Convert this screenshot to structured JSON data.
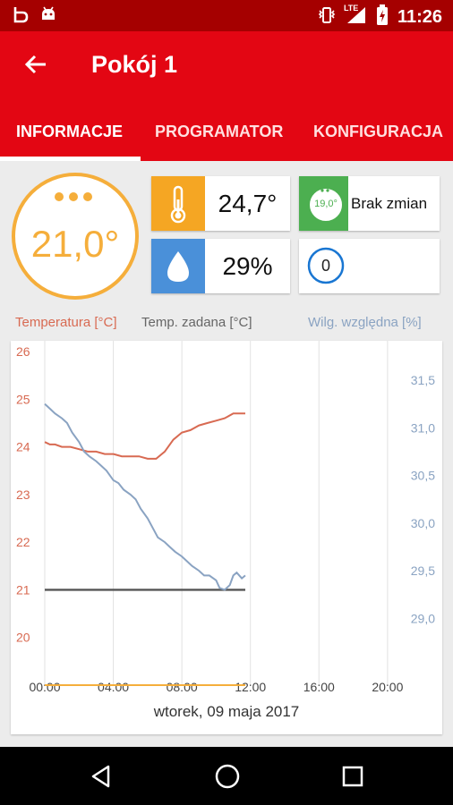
{
  "status": {
    "time": "11:26",
    "lte": "LTE"
  },
  "app": {
    "title": "Pokój 1"
  },
  "tabs": [
    {
      "label": "INFORMACJE",
      "active": true
    },
    {
      "label": "PROGRAMATOR",
      "active": false
    },
    {
      "label": "KONFIGURACJA",
      "active": false
    }
  ],
  "room": {
    "set_temperature": "21,0°",
    "current_temperature": "24,7°",
    "humidity": "29%",
    "mode_badge": "19,0°",
    "status_text": "Brak zmian",
    "counter": "0"
  },
  "legend": {
    "temperature": "Temperatura [°C]",
    "setpoint": "Temp. zadana [°C]",
    "humidity": "Wilg. względna [%]"
  },
  "colors": {
    "brand_red": "#e30613",
    "status_red": "#a50000",
    "orange": "#f5ae3b",
    "blue": "#4a90d9",
    "green": "#4caf50",
    "temp_series": "#d86a52",
    "setpoint_series": "#555555",
    "humidity_series": "#8aa3c2"
  },
  "chart_data": {
    "type": "line",
    "date_label": "wtorek, 09 maja 2017",
    "x_ticks": [
      "00:00",
      "04:00",
      "08:00",
      "12:00",
      "16:00",
      "20:00"
    ],
    "x_range_hours": [
      0,
      21
    ],
    "y_left_ticks": [
      "26",
      "25",
      "24",
      "23",
      "22",
      "21",
      "20"
    ],
    "y_left_range": [
      19,
      26
    ],
    "y_right_ticks": [
      "31,5",
      "31,0",
      "30,5",
      "30,0",
      "29,5",
      "29,0"
    ],
    "y_right_range": [
      28.3,
      31.8
    ],
    "series": [
      {
        "name": "Temperatura [°C]",
        "axis": "left",
        "x": [
          0,
          0.3,
          0.6,
          1,
          1.5,
          2,
          2.5,
          3,
          3.5,
          4,
          4.5,
          5,
          5.5,
          6,
          6.5,
          7,
          7.5,
          8,
          8.5,
          9,
          9.5,
          10,
          10.5,
          11,
          11.5,
          11.7
        ],
        "y": [
          24.1,
          24.05,
          24.05,
          24.0,
          24.0,
          23.95,
          23.9,
          23.9,
          23.85,
          23.85,
          23.8,
          23.8,
          23.8,
          23.75,
          23.75,
          23.9,
          24.15,
          24.3,
          24.35,
          24.45,
          24.5,
          24.55,
          24.6,
          24.7,
          24.7,
          24.7
        ]
      },
      {
        "name": "Temp. zadana [°C]",
        "axis": "left",
        "x": [
          0,
          11.7
        ],
        "y": [
          21.0,
          21.0
        ]
      },
      {
        "name": "Wilg. względna [%]",
        "axis": "right",
        "x": [
          0,
          0.3,
          0.6,
          1,
          1.3,
          1.6,
          2,
          2.3,
          2.6,
          3,
          3.3,
          3.6,
          4,
          4.3,
          4.6,
          5,
          5.3,
          5.6,
          6,
          6.3,
          6.6,
          7,
          7.3,
          7.6,
          8,
          8.3,
          8.6,
          9,
          9.3,
          9.6,
          10,
          10.2,
          10.5,
          10.8,
          11,
          11.2,
          11.5,
          11.7
        ],
        "y": [
          31.25,
          31.2,
          31.15,
          31.1,
          31.05,
          30.95,
          30.85,
          30.75,
          30.7,
          30.65,
          30.6,
          30.55,
          30.45,
          30.42,
          30.35,
          30.3,
          30.25,
          30.15,
          30.05,
          29.95,
          29.85,
          29.8,
          29.75,
          29.7,
          29.65,
          29.6,
          29.55,
          29.5,
          29.45,
          29.45,
          29.4,
          29.32,
          29.3,
          29.35,
          29.45,
          29.48,
          29.42,
          29.45
        ]
      }
    ],
    "baseline_line": {
      "axis": "left",
      "y": 19.0
    }
  }
}
